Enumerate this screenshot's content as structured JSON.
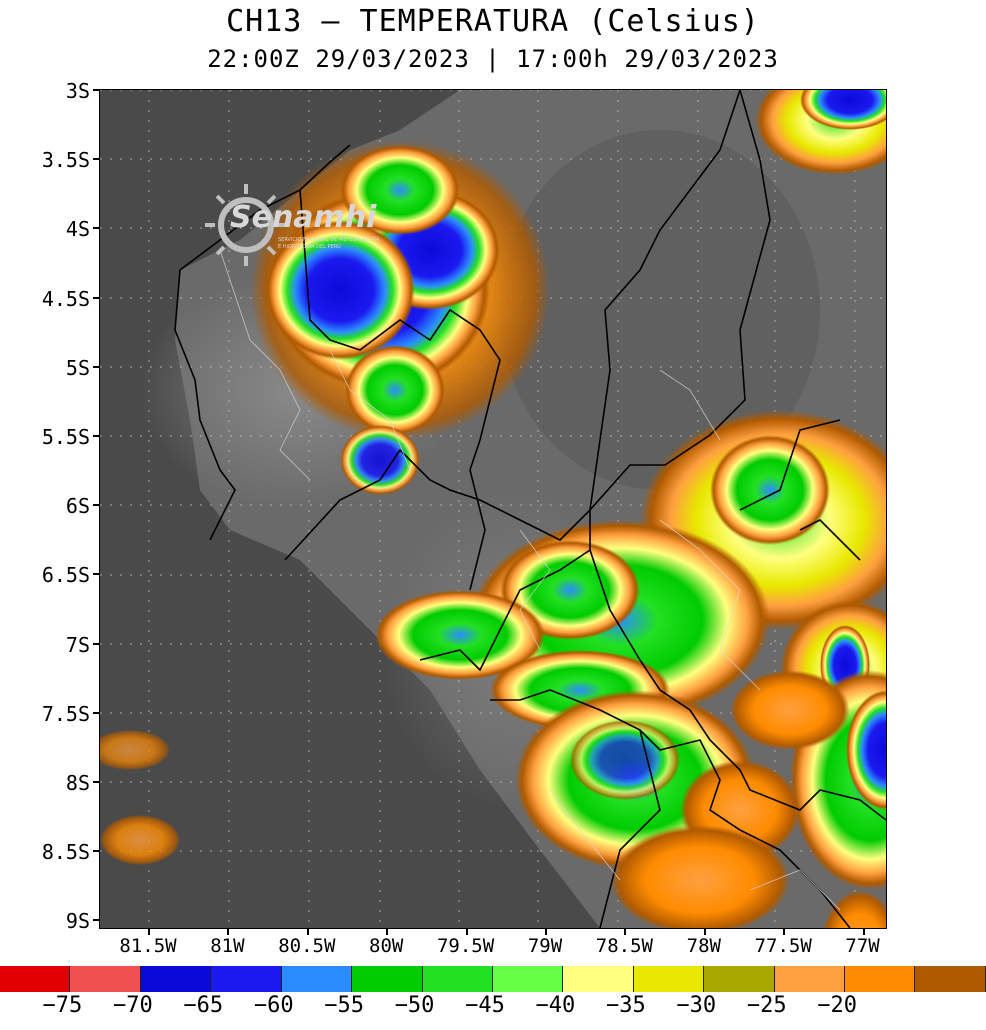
{
  "title": "CH13 – TEMPERATURA (Celsius)",
  "subtitle": "22:00Z 29/03/2023 | 17:00h 29/03/2023",
  "logo": {
    "text": "Senamhi",
    "subtext_1": "SERVICIO NACIONAL DE METEOROLOGÍA",
    "subtext_2": "E HIDROLOGÍA DEL PERÚ"
  },
  "lat_labels": [
    "3S",
    "3.5S",
    "4S",
    "4.5S",
    "5S",
    "5.5S",
    "6S",
    "6.5S",
    "7S",
    "7.5S",
    "8S",
    "8.5S",
    "9S"
  ],
  "lon_labels": [
    "81.5W",
    "81W",
    "80.5W",
    "80W",
    "79.5W",
    "79W",
    "78.5W",
    "78W",
    "77.5W",
    "77W"
  ],
  "colorbar": {
    "colors": [
      "#e00000",
      "#f05050",
      "#0a0ad8",
      "#1a1af0",
      "#2b8cff",
      "#00cc00",
      "#22e022",
      "#66ff44",
      "#ffff80",
      "#e8e800",
      "#a8a800",
      "#ffa040",
      "#ff8c00",
      "#b05a00"
    ],
    "labels": [
      "−75",
      "−70",
      "−65",
      "−60",
      "−55",
      "−50",
      "−45",
      "−40",
      "−35",
      "−30",
      "−25",
      "−20"
    ]
  }
}
